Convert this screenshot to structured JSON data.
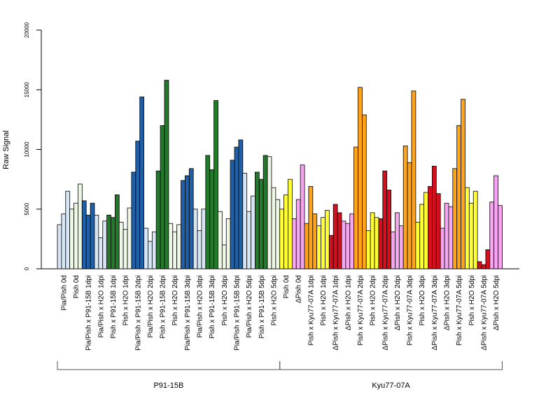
{
  "chart_data": {
    "type": "bar",
    "ylabel": "Raw Signal",
    "ylim": [
      0,
      20000
    ],
    "yticks": [
      0,
      5000,
      10000,
      15000,
      20000
    ],
    "grid": false,
    "groups": [
      {
        "label": "P91-15B",
        "first_category": 0,
        "last_category": 17
      },
      {
        "label": "Kyu77-07A",
        "first_category": 18,
        "last_category": 35
      }
    ],
    "colors": {
      "lightblue": "#d7e6f5",
      "blue": "#2060a8",
      "lightgreen": "#eef6e6",
      "green": "#237a2a",
      "yellow": "#ffff33",
      "pink": "#f4a6ee",
      "orange": "#ffa41a",
      "red": "#d40f1e"
    },
    "categories": [
      {
        "label": "Pia/Pish 0d",
        "color": "lightblue",
        "values": [
          3700,
          4600,
          6500
        ]
      },
      {
        "label": "Pish 0d",
        "color": "lightgreen",
        "values": [
          5000,
          5500,
          7100
        ]
      },
      {
        "label": "Pia/Pish x P91-15B 1dpi",
        "color": "blue",
        "values": [
          5700,
          4500,
          5500
        ]
      },
      {
        "label": "Pia/Pish x H2O 1dpi",
        "color": "lightblue",
        "values": [
          4500,
          2600,
          4000
        ]
      },
      {
        "label": "Pish x P91-15B 1dpi",
        "color": "green",
        "values": [
          4500,
          4300,
          6200
        ]
      },
      {
        "label": "Pish x H2O 1dpi",
        "color": "lightgreen",
        "values": [
          3900,
          3300,
          5100
        ]
      },
      {
        "label": "Pia/Pish x P91-15B 2dpi",
        "color": "blue",
        "values": [
          8100,
          10700,
          14400
        ]
      },
      {
        "label": "Pia/Pish x H2O 2dpi",
        "color": "lightblue",
        "values": [
          3400,
          2300,
          3100
        ]
      },
      {
        "label": "Pish x P91-15B 2dpi",
        "color": "green",
        "values": [
          8200,
          12000,
          15800
        ]
      },
      {
        "label": "Pish x H2O 2dpi",
        "color": "lightgreen",
        "values": [
          3800,
          3100,
          3700
        ]
      },
      {
        "label": "Pia/Pish x P91-15B 3dpi",
        "color": "blue",
        "values": [
          7400,
          7800,
          8400
        ]
      },
      {
        "label": "Pia/Pish x H2O 3dpi",
        "color": "lightblue",
        "values": [
          5000,
          3200,
          5000
        ]
      },
      {
        "label": "Pish x P91-15B 3dpi",
        "color": "green",
        "values": [
          9500,
          8300,
          14100
        ]
      },
      {
        "label": "Pish x H2O 3dpi",
        "color": "lightgreen",
        "values": [
          4800,
          2000,
          4200
        ]
      },
      {
        "label": "Pia/Pish x P91-15B 5dpi",
        "color": "blue",
        "values": [
          9100,
          10200,
          10800
        ]
      },
      {
        "label": "Pia/Pish x H2O 5dpi",
        "color": "lightblue",
        "values": [
          8000,
          4800,
          6100
        ]
      },
      {
        "label": "Pish x P91-15B 5dpi",
        "color": "green",
        "values": [
          8100,
          7500,
          9500
        ]
      },
      {
        "label": "Pish x H2O 5dpi",
        "color": "lightgreen",
        "values": [
          9400,
          6800,
          5800
        ]
      },
      {
        "label": "Pish 0d",
        "color": "yellow",
        "values": [
          5000,
          6200,
          7500
        ]
      },
      {
        "label": "ΔPish 0d",
        "color": "pink",
        "values": [
          4200,
          5800,
          8700
        ]
      },
      {
        "label": "Pish x Kyu77-07A 1dpi",
        "color": "orange",
        "values": [
          3800,
          6900,
          4600
        ]
      },
      {
        "label": "Pish x H2O 1dpi",
        "color": "yellow",
        "values": [
          3600,
          4300,
          4900
        ]
      },
      {
        "label": "ΔPish x Kyu77-07A 1dpi",
        "color": "red",
        "values": [
          2800,
          5400,
          4700
        ]
      },
      {
        "label": "ΔPish x H2O 1dpi",
        "color": "pink",
        "values": [
          4000,
          3800,
          4600
        ]
      },
      {
        "label": "Pish x Kyu77-07A 2dpi",
        "color": "orange",
        "values": [
          10200,
          15200,
          12900
        ]
      },
      {
        "label": "Pish x H2O 2dpi",
        "color": "yellow",
        "values": [
          3200,
          4700,
          4300
        ]
      },
      {
        "label": "ΔPish x Kyu77-07A 2dpi",
        "color": "red",
        "values": [
          4200,
          8200,
          6600
        ]
      },
      {
        "label": "ΔPish x H2O 2dpi",
        "color": "pink",
        "values": [
          3100,
          4700,
          3600
        ]
      },
      {
        "label": "Pish x Kyu77-07A 3dpi",
        "color": "orange",
        "values": [
          10300,
          8900,
          14900
        ]
      },
      {
        "label": "Pish x H2O 3dpi",
        "color": "yellow",
        "values": [
          3900,
          5400,
          6400
        ]
      },
      {
        "label": "ΔPish x Kyu77-07A 3dpi",
        "color": "red",
        "values": [
          6900,
          8600,
          6300
        ]
      },
      {
        "label": "ΔPish x H2O 3dpi",
        "color": "pink",
        "values": [
          3400,
          5500,
          5200
        ]
      },
      {
        "label": "Pish x Kyu77-07A 5dpi",
        "color": "orange",
        "values": [
          8400,
          12000,
          14200
        ]
      },
      {
        "label": "Pish x H2O 5dpi",
        "color": "yellow",
        "values": [
          6800,
          5500,
          6500
        ]
      },
      {
        "label": "ΔPish x Kyu77-07A 5dpi",
        "color": "red",
        "values": [
          600,
          350,
          1600
        ]
      },
      {
        "label": "ΔPish x H2O 5dpi",
        "color": "pink",
        "values": [
          5600,
          7800,
          5300
        ]
      }
    ]
  }
}
